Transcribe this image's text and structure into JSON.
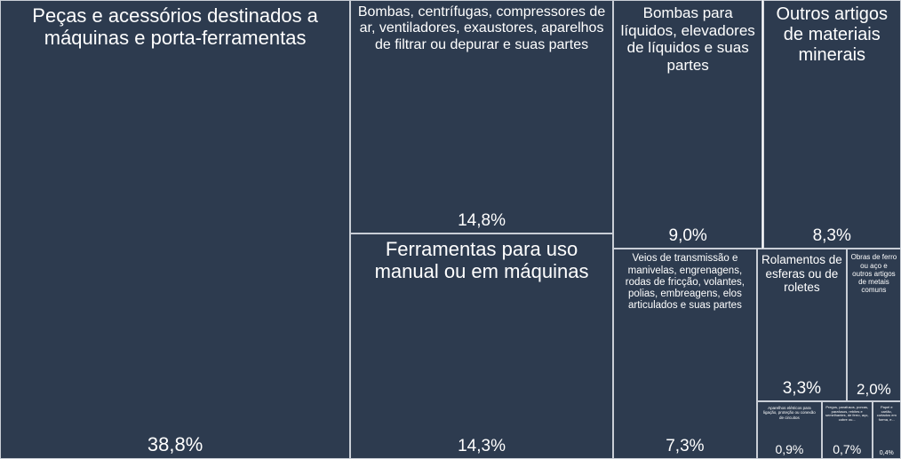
{
  "chart_data": {
    "type": "treemap",
    "categories": [
      "Peças e acessórios destinados a máquinas e porta-ferramentas",
      "Bombas, centrífugas, compressores de ar, ventiladores, exaustores, aparelhos de filtrar ou depurar e suas partes",
      "Ferramentas para uso manual ou em máquinas",
      "Bombas para líquidos, elevadores de líquidos e suas partes",
      "Outros artigos de materiais minerais",
      "Veios de transmissão e manivelas, engrenagens, rodas de fricção, volantes, polias, embreagens, elos articulados e suas partes",
      "Rolamentos de esferas ou de roletes",
      "Obras de ferro ou aço e outros artigos de metais comuns",
      "Aparelhos elétricos para ligação, proteção ou conexão de circuitos",
      "Pregos, parafusos, porcas, parafusos, rebites e semelhantes, de ferro, aço, cobre ou...",
      "Papel e cartão, cortados em forma, e..."
    ],
    "values": [
      38.8,
      14.8,
      14.3,
      9.0,
      8.3,
      7.3,
      3.3,
      2.0,
      0.9,
      0.7,
      0.4
    ],
    "value_labels": [
      "38,8%",
      "14,8%",
      "14,3%",
      "9,0%",
      "8,3%",
      "7,3%",
      "3,3%",
      "2,0%",
      "0,9%",
      "0,7%",
      "0,4%"
    ],
    "color": "#2d3b4f"
  }
}
